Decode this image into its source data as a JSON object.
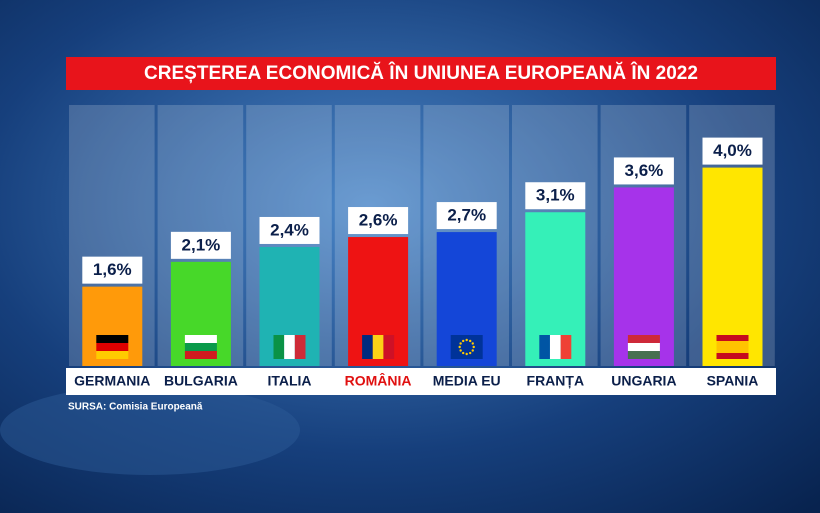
{
  "chart_data": {
    "type": "bar",
    "title": "CREȘTEREA ECONOMICĂ ÎN UNIUNEA EUROPEANĂ ÎN 2022",
    "categories": [
      "GERMANIA",
      "BULGARIA",
      "ITALIA",
      "ROMÂNIA",
      "MEDIA EU",
      "FRANȚA",
      "UNGARIA",
      "SPANIA"
    ],
    "values": [
      1.6,
      2.1,
      2.4,
      2.6,
      2.7,
      3.1,
      3.6,
      4.0
    ],
    "value_labels": [
      "1,6%",
      "2,1%",
      "2,4%",
      "2,6%",
      "2,7%",
      "3,1%",
      "3,6%",
      "4,0%"
    ],
    "colors": [
      "#ff9a0a",
      "#47d829",
      "#1fb3b3",
      "#ee1313",
      "#1446d8",
      "#35f0b8",
      "#a633ea",
      "#ffe600"
    ],
    "label_colors": [
      "#0b1f4a",
      "#0b1f4a",
      "#0b1f4a",
      "#e01010",
      "#0b1f4a",
      "#0b1f4a",
      "#0b1f4a",
      "#0b1f4a"
    ],
    "source": "SURSA: Comisia Europeană"
  }
}
